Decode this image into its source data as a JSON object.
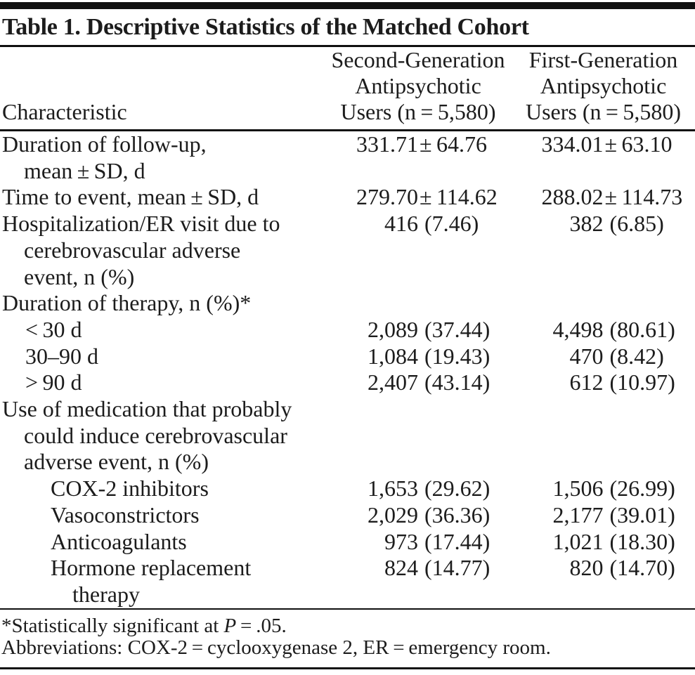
{
  "title": "Table 1. Descriptive Statistics of the Matched Cohort",
  "header": {
    "characteristic": "Characteristic",
    "col2": "Second-Generation\nAntipsychotic\nUsers (n = 5,580)",
    "col3": "First-Generation\nAntipsychotic\nUsers (n = 5,580)"
  },
  "rows": [
    {
      "label": "Duration of follow-up,\nmean ± SD, d",
      "indent": 0,
      "c1": {
        "l": "331.71",
        "r": "± 64.76"
      },
      "c2": {
        "l": "334.01",
        "r": "± 63.10"
      }
    },
    {
      "label": "Time to event, mean ± SD, d",
      "indent": 0,
      "c1": {
        "l": "279.70",
        "r": "± 114.62"
      },
      "c2": {
        "l": "288.02",
        "r": "± 114.73"
      }
    },
    {
      "label": "Hospitalization/ER visit due to\ncerebrovascular adverse\nevent, n (%)",
      "indent": 0,
      "c1": {
        "l": "416",
        "r": "(7.46)"
      },
      "c2": {
        "l": "382",
        "r": "(6.85)"
      }
    },
    {
      "label": "Duration of therapy, n (%)*",
      "indent": 0,
      "c1": null,
      "c2": null
    },
    {
      "label": "< 30 d",
      "indent": 1,
      "c1": {
        "l": "2,089",
        "r": "(37.44)"
      },
      "c2": {
        "l": "4,498",
        "r": "(80.61)"
      }
    },
    {
      "label": "30–90 d",
      "indent": 1,
      "c1": {
        "l": "1,084",
        "r": "(19.43)"
      },
      "c2": {
        "l": "470",
        "r": "(8.42)"
      }
    },
    {
      "label": "> 90 d",
      "indent": 1,
      "c1": {
        "l": "2,407",
        "r": "(43.14)"
      },
      "c2": {
        "l": "612",
        "r": "(10.97)"
      }
    },
    {
      "label": "Use of medication that probably\ncould induce cerebrovascular\nadverse event, n (%)",
      "indent": 0,
      "c1": null,
      "c2": null
    },
    {
      "label": "COX-2 inhibitors",
      "indent": 2,
      "c1": {
        "l": "1,653",
        "r": "(29.62)"
      },
      "c2": {
        "l": "1,506",
        "r": "(26.99)"
      }
    },
    {
      "label": "Vasoconstrictors",
      "indent": 2,
      "c1": {
        "l": "2,029",
        "r": "(36.36)"
      },
      "c2": {
        "l": "2,177",
        "r": "(39.01)"
      }
    },
    {
      "label": "Anticoagulants",
      "indent": 2,
      "c1": {
        "l": "973",
        "r": "(17.44)"
      },
      "c2": {
        "l": "1,021",
        "r": "(18.30)"
      }
    },
    {
      "label": "Hormone replacement\ntherapy",
      "indent": 2,
      "c1": {
        "l": "824",
        "r": "(14.77)"
      },
      "c2": {
        "l": "820",
        "r": "(14.70)"
      }
    }
  ],
  "footnotes": {
    "significance": {
      "pre": "*Statistically significant at ",
      "italic": "P",
      "post": " = .05."
    },
    "abbreviations": "Abbreviations: COX-2 = cyclooxygenase 2, ER = emergency room."
  },
  "colors": {
    "text": "#1c1c1c",
    "rule": "#101010",
    "background": "#ffffff"
  }
}
